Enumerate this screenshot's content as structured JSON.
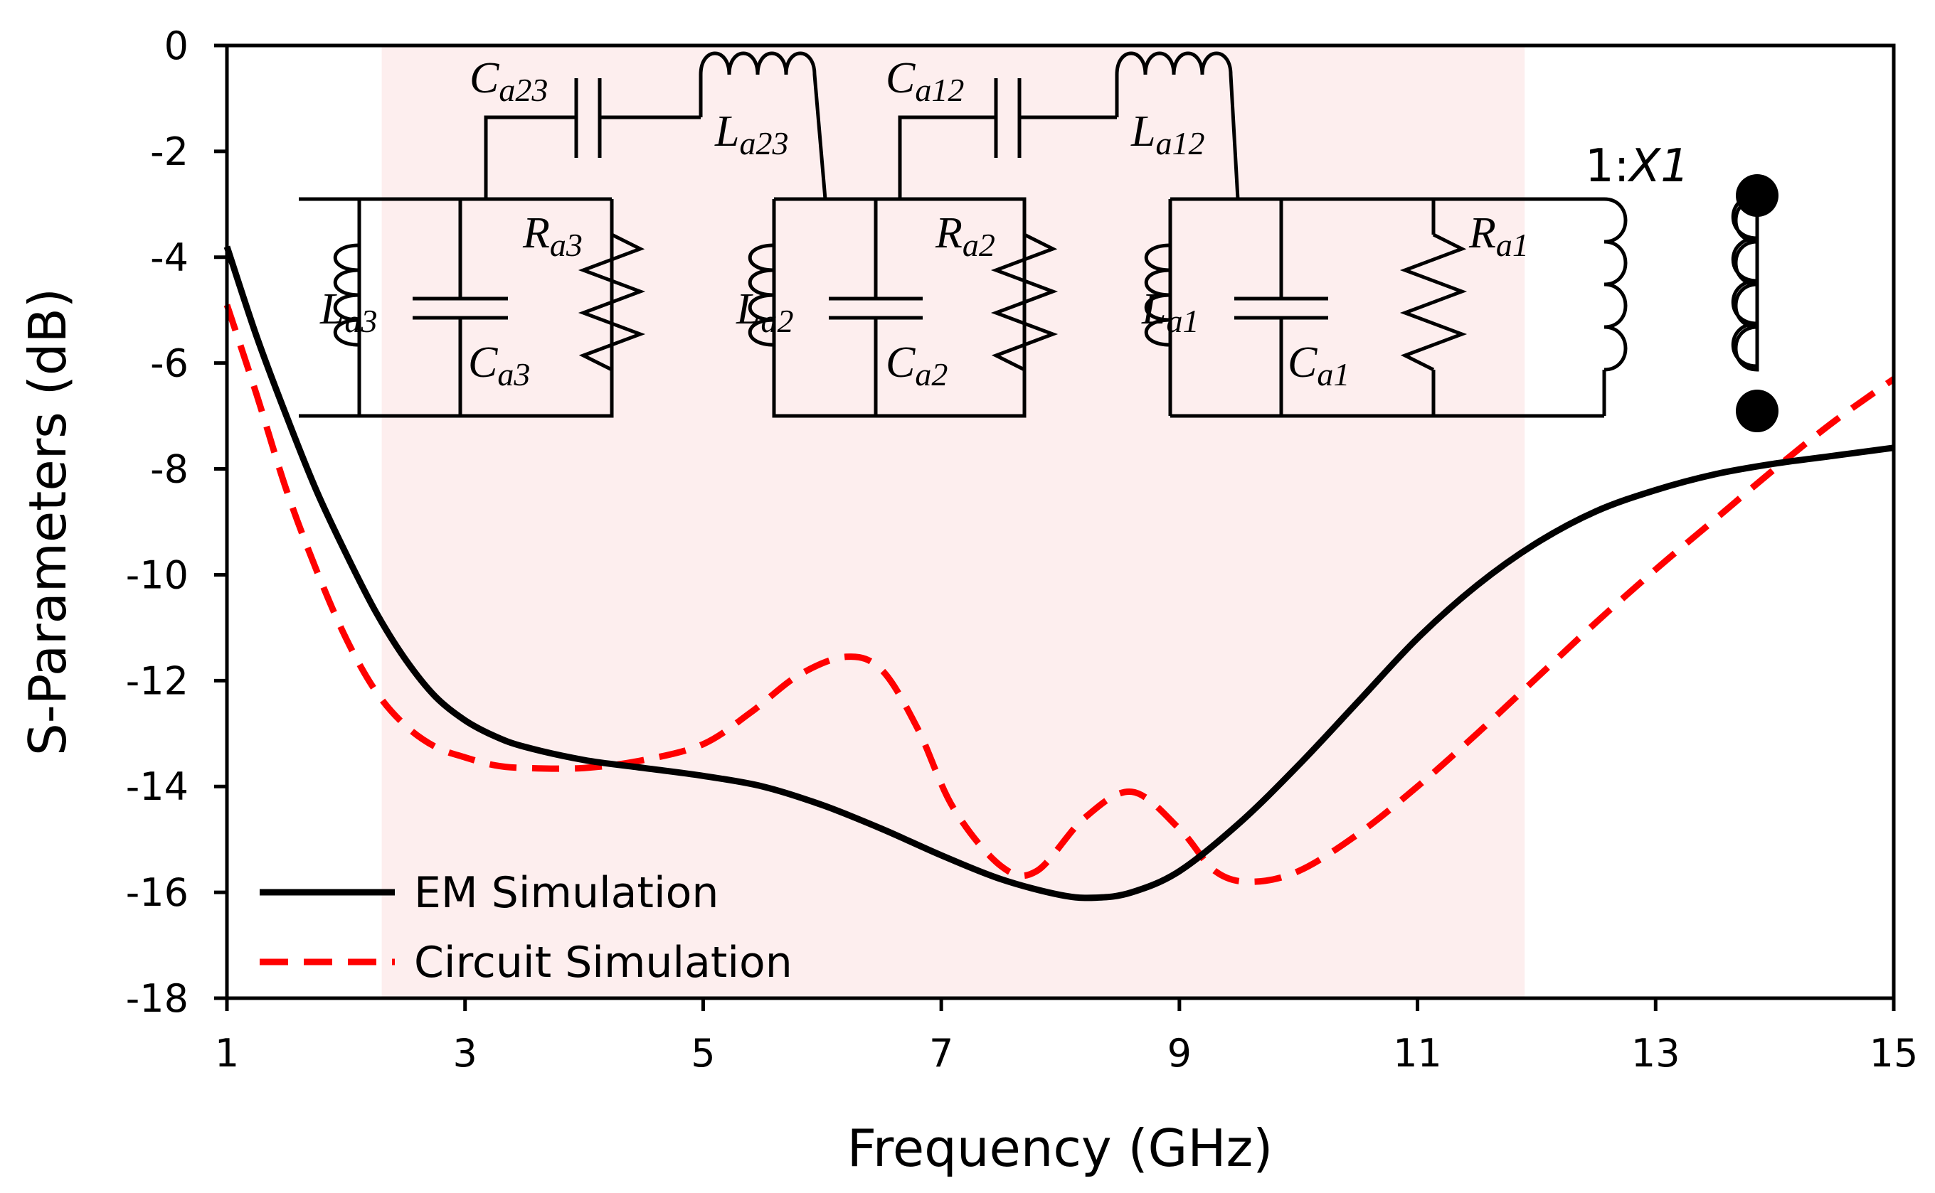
{
  "chart_data": {
    "type": "line",
    "title": "",
    "xlabel": "Frequency (GHz)",
    "ylabel": "S-Parameters (dB)",
    "xlim": [
      1,
      15
    ],
    "ylim": [
      -18,
      0
    ],
    "x_ticks": [
      "1",
      "3",
      "5",
      "7",
      "9",
      "11",
      "13",
      "15"
    ],
    "y_ticks": [
      "0",
      "-2",
      "-4",
      "-6",
      "-8",
      "-10",
      "-12",
      "-14",
      "-16",
      "-18"
    ],
    "shaded_band": {
      "x_start": 2.3,
      "x_end": 11.9,
      "color": "#fdeeee"
    },
    "legend_position": "bottom-left",
    "series": [
      {
        "name": "EM Simulation",
        "style": "solid",
        "color": "#000000",
        "x": [
          1.0,
          1.25,
          1.5,
          1.75,
          2.0,
          2.25,
          2.5,
          2.75,
          3.0,
          3.25,
          3.5,
          4.0,
          4.5,
          5.0,
          5.5,
          6.0,
          6.5,
          7.0,
          7.5,
          8.0,
          8.3,
          8.6,
          9.0,
          9.5,
          10.0,
          10.5,
          11.0,
          11.5,
          12.0,
          12.5,
          13.0,
          13.5,
          14.0,
          14.5,
          15.0
        ],
        "y": [
          -3.8,
          -5.5,
          -7.0,
          -8.4,
          -9.6,
          -10.7,
          -11.6,
          -12.3,
          -12.75,
          -13.05,
          -13.25,
          -13.5,
          -13.65,
          -13.8,
          -14.0,
          -14.35,
          -14.8,
          -15.3,
          -15.75,
          -16.05,
          -16.1,
          -16.0,
          -15.6,
          -14.7,
          -13.6,
          -12.4,
          -11.2,
          -10.2,
          -9.4,
          -8.8,
          -8.4,
          -8.1,
          -7.9,
          -7.75,
          -7.6
        ]
      },
      {
        "name": "Circuit Simulation",
        "style": "dashed",
        "color": "#ff0000",
        "x": [
          1.0,
          1.25,
          1.5,
          1.75,
          2.0,
          2.25,
          2.5,
          2.75,
          3.0,
          3.25,
          3.5,
          4.0,
          4.5,
          5.0,
          5.4,
          5.8,
          6.2,
          6.5,
          6.8,
          7.1,
          7.5,
          7.8,
          8.2,
          8.6,
          9.0,
          9.3,
          9.6,
          10.0,
          10.5,
          11.0,
          11.5,
          12.0,
          12.5,
          13.0,
          13.5,
          14.0,
          14.5,
          15.0
        ],
        "y": [
          -4.9,
          -6.6,
          -8.4,
          -9.9,
          -11.2,
          -12.2,
          -12.85,
          -13.25,
          -13.45,
          -13.6,
          -13.65,
          -13.65,
          -13.5,
          -13.2,
          -12.6,
          -11.9,
          -11.55,
          -11.8,
          -12.9,
          -14.4,
          -15.5,
          -15.6,
          -14.6,
          -14.1,
          -14.8,
          -15.6,
          -15.8,
          -15.6,
          -14.9,
          -14.0,
          -13.0,
          -11.95,
          -10.9,
          -9.9,
          -8.95,
          -8.0,
          -7.1,
          -6.3
        ]
      }
    ]
  },
  "inset": {
    "labels": {
      "ca23": {
        "main": "C",
        "sub": "a23"
      },
      "la23": {
        "main": "L",
        "sub": "a23"
      },
      "ca12": {
        "main": "C",
        "sub": "a12"
      },
      "la12": {
        "main": "L",
        "sub": "a12"
      },
      "ra3": {
        "main": "R",
        "sub": "a3"
      },
      "la3": {
        "main": "L",
        "sub": "a3"
      },
      "ca3": {
        "main": "C",
        "sub": "a3"
      },
      "ra2": {
        "main": "R",
        "sub": "a2"
      },
      "la2": {
        "main": "L",
        "sub": "a2"
      },
      "ca2": {
        "main": "C",
        "sub": "a2"
      },
      "ra1": {
        "main": "R",
        "sub": "a1"
      },
      "la1": {
        "main": "L",
        "sub": "a1"
      },
      "ca1": {
        "main": "C",
        "sub": "a1"
      }
    },
    "transformer": {
      "prefix": "1:",
      "ratio": "X1"
    }
  }
}
